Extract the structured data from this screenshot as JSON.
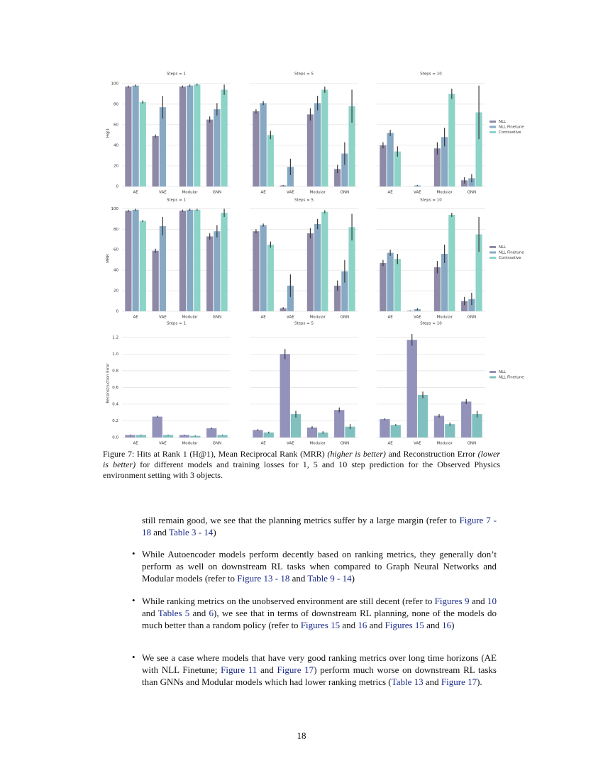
{
  "chart_data": [
    {
      "type": "bar",
      "title": "Steps = 1",
      "ylabel": "H@1",
      "categories": [
        "AE",
        "VAE",
        "Modular",
        "GNN"
      ],
      "ylim": [
        0,
        104
      ],
      "yticks": [
        0,
        20,
        40,
        60,
        80,
        100
      ],
      "grid": true,
      "series": [
        {
          "name": "NLL",
          "color": "#8d89a6",
          "values": [
            97,
            49,
            97,
            65
          ],
          "errors": [
            1,
            1.5,
            1,
            3
          ]
        },
        {
          "name": "NLL Finetune",
          "color": "#88a9c3",
          "values": [
            98,
            77,
            98,
            75
          ],
          "errors": [
            1,
            11,
            1,
            6
          ]
        },
        {
          "name": "Contrastive",
          "color": "#8dd3c7",
          "values": [
            82,
            0,
            99,
            94
          ],
          "errors": [
            1.5,
            0,
            1,
            5
          ]
        }
      ]
    },
    {
      "type": "bar",
      "title": "Steps = 5",
      "categories": [
        "AE",
        "VAE",
        "Modular",
        "GNN"
      ],
      "ylim": [
        0,
        104
      ],
      "yticks": [
        0,
        20,
        40,
        60,
        80,
        100
      ],
      "grid": true,
      "series": [
        {
          "name": "NLL",
          "color": "#8d89a6",
          "values": [
            73,
            1,
            70,
            17
          ],
          "errors": [
            2,
            0.5,
            6,
            4
          ]
        },
        {
          "name": "NLL Finetune",
          "color": "#88a9c3",
          "values": [
            81,
            19,
            81,
            32
          ],
          "errors": [
            2,
            8,
            7,
            11
          ]
        },
        {
          "name": "Contrastive",
          "color": "#8dd3c7",
          "values": [
            50,
            0,
            94,
            78
          ],
          "errors": [
            4,
            0,
            3,
            16
          ]
        }
      ]
    },
    {
      "type": "bar",
      "title": "Steps = 10",
      "categories": [
        "AE",
        "VAE",
        "Modular",
        "GNN"
      ],
      "ylim": [
        0,
        104
      ],
      "yticks": [
        0,
        20,
        40,
        60,
        80,
        100
      ],
      "grid": true,
      "legend": "right",
      "series": [
        {
          "name": "NLL",
          "color": "#8d89a6",
          "values": [
            40,
            0,
            37,
            6
          ],
          "errors": [
            3,
            0,
            6,
            3
          ]
        },
        {
          "name": "NLL Finetune",
          "color": "#88a9c3",
          "values": [
            52,
            1,
            48,
            8
          ],
          "errors": [
            3,
            0.5,
            9,
            4
          ]
        },
        {
          "name": "Contrastive",
          "color": "#8dd3c7",
          "values": [
            34,
            0,
            90,
            72
          ],
          "errors": [
            5,
            0,
            5,
            26
          ]
        }
      ]
    },
    {
      "type": "bar",
      "title": "Steps = 1",
      "ylabel": "MRR",
      "categories": [
        "AE",
        "VAE",
        "Modular",
        "GNN"
      ],
      "ylim": [
        0,
        103
      ],
      "yticks": [
        0,
        20,
        40,
        60,
        80,
        100
      ],
      "grid": true,
      "series": [
        {
          "name": "NLL",
          "color": "#8d89a6",
          "values": [
            98,
            59,
            98,
            73
          ],
          "errors": [
            1,
            2,
            1,
            3
          ]
        },
        {
          "name": "NLL Finetune",
          "color": "#88a9c3",
          "values": [
            99,
            83,
            99,
            78
          ],
          "errors": [
            1,
            9,
            1,
            6
          ]
        },
        {
          "name": "Contrastive",
          "color": "#8dd3c7",
          "values": [
            88,
            0,
            99,
            96
          ],
          "errors": [
            1,
            0,
            1,
            4
          ]
        }
      ]
    },
    {
      "type": "bar",
      "title": "Steps = 5",
      "categories": [
        "AE",
        "VAE",
        "Modular",
        "GNN"
      ],
      "ylim": [
        0,
        103
      ],
      "yticks": [
        0,
        20,
        40,
        60,
        80,
        100
      ],
      "grid": true,
      "series": [
        {
          "name": "NLL",
          "color": "#8d89a6",
          "values": [
            78,
            3,
            76,
            25
          ],
          "errors": [
            2,
            1,
            5,
            5
          ]
        },
        {
          "name": "NLL Finetune",
          "color": "#88a9c3",
          "values": [
            84,
            25,
            85,
            39
          ],
          "errors": [
            1.5,
            11,
            5,
            11
          ]
        },
        {
          "name": "Contrastive",
          "color": "#8dd3c7",
          "values": [
            65,
            0,
            97,
            82
          ],
          "errors": [
            3,
            0,
            1.5,
            13
          ]
        }
      ]
    },
    {
      "type": "bar",
      "title": "Steps = 10",
      "categories": [
        "AE",
        "VAE",
        "Modular",
        "GNN"
      ],
      "ylim": [
        0,
        103
      ],
      "yticks": [
        0,
        20,
        40,
        60,
        80,
        100
      ],
      "grid": true,
      "legend": "right",
      "series": [
        {
          "name": "NLL",
          "color": "#8d89a6",
          "values": [
            47,
            0.5,
            43,
            10
          ],
          "errors": [
            3,
            0.3,
            6,
            4
          ]
        },
        {
          "name": "NLL Finetune",
          "color": "#88a9c3",
          "values": [
            57,
            2,
            56,
            12
          ],
          "errors": [
            3,
            1,
            9,
            6
          ]
        },
        {
          "name": "Contrastive",
          "color": "#8dd3c7",
          "values": [
            51,
            0,
            94,
            75
          ],
          "errors": [
            5,
            0,
            2,
            17
          ]
        }
      ]
    },
    {
      "type": "bar",
      "title": "Steps = 1",
      "ylabel": "Reconstruction Error",
      "categories": [
        "AE",
        "VAE",
        "Modular",
        "GNN"
      ],
      "ylim": [
        0,
        1.3
      ],
      "yticks": [
        {
          "value": 0,
          "label": "0.0"
        },
        0.2,
        0.4,
        0.6,
        0.8,
        {
          "value": 1,
          "label": "1.0"
        },
        1.2
      ],
      "grid": true,
      "series": [
        {
          "name": "NLL",
          "color": "#9292bb",
          "values": [
            0.03,
            0.25,
            0.03,
            0.11
          ],
          "errors": [
            0.005,
            0.01,
            0.005,
            0.01
          ]
        },
        {
          "name": "NLL Finetune",
          "color": "#80c1c0",
          "values": [
            0.03,
            0.03,
            0.02,
            0.03
          ],
          "errors": [
            0.005,
            0.005,
            0.005,
            0.005
          ]
        }
      ]
    },
    {
      "type": "bar",
      "title": "Steps = 5",
      "categories": [
        "AE",
        "VAE",
        "Modular",
        "GNN"
      ],
      "ylim": [
        0,
        1.3
      ],
      "yticks": [
        {
          "value": 0,
          "label": "0.0"
        },
        0.2,
        0.4,
        0.6,
        0.8,
        {
          "value": 1,
          "label": "1.0"
        },
        1.2
      ],
      "grid": true,
      "series": [
        {
          "name": "NLL",
          "color": "#9292bb",
          "values": [
            0.09,
            1.0,
            0.12,
            0.33
          ],
          "errors": [
            0.01,
            0.06,
            0.015,
            0.03
          ]
        },
        {
          "name": "NLL Finetune",
          "color": "#80c1c0",
          "values": [
            0.06,
            0.28,
            0.06,
            0.13
          ],
          "errors": [
            0.01,
            0.04,
            0.015,
            0.03
          ]
        }
      ]
    },
    {
      "type": "bar",
      "title": "Steps = 10",
      "categories": [
        "AE",
        "VAE",
        "Modular",
        "GNN"
      ],
      "ylim": [
        0,
        1.3
      ],
      "yticks": [
        {
          "value": 0,
          "label": "0.0"
        },
        0.2,
        0.4,
        0.6,
        0.8,
        {
          "value": 1,
          "label": "1.0"
        },
        1.2
      ],
      "grid": true,
      "legend": "right",
      "series": [
        {
          "name": "NLL",
          "color": "#9292bb",
          "values": [
            0.22,
            1.17,
            0.26,
            0.43
          ],
          "errors": [
            0.01,
            0.07,
            0.02,
            0.03
          ]
        },
        {
          "name": "NLL Finetune",
          "color": "#80c1c0",
          "values": [
            0.15,
            0.51,
            0.16,
            0.28
          ],
          "errors": [
            0.01,
            0.04,
            0.02,
            0.04
          ]
        }
      ]
    }
  ],
  "caption": [
    "Figure 7: Hits at Rank 1 (H@1), Mean Reciprocal Rank (MRR) ",
    {
      "text": "(higher is better)",
      "italic": true
    },
    " and Reconstruction Error ",
    {
      "text": "(lower is better)",
      "italic": true
    },
    " for different models and training losses for 1, 5 and 10 step prediction for the Observed Physics environment setting with 3 objects."
  ],
  "body": {
    "intro": [
      "still remain good, we see that the planning metrics suffer by a large margin (refer to ",
      {
        "text": "Figure 7 - 18",
        "link": true
      },
      " and ",
      {
        "text": "Table 3 - 14",
        "link": true
      },
      ")"
    ],
    "bullets": [
      [
        "While Autoencoder models perform decently based on ranking metrics, they generally don’t perform as well on downstream RL tasks when compared to Graph Neural Networks and Modular models (refer to ",
        {
          "text": "Figure 13 - 18",
          "link": true
        },
        " and ",
        {
          "text": "Table 9 - 14",
          "link": true
        },
        ")"
      ],
      [
        "While ranking metrics on the unobserved environment are still decent (refer to ",
        {
          "text": "Figures 9",
          "link": true
        },
        " and ",
        {
          "text": "10",
          "link": true
        },
        " and ",
        {
          "text": "Tables 5",
          "link": true
        },
        " and ",
        {
          "text": "6",
          "link": true
        },
        "), we see that in terms of downstream RL planning, none of the models do much better than a random policy (refer to ",
        {
          "text": "Figures 15",
          "link": true
        },
        " and ",
        {
          "text": "16",
          "link": true
        },
        " and ",
        {
          "text": "Figures 15",
          "link": true
        },
        " and ",
        {
          "text": "16",
          "link": true
        },
        ")"
      ],
      [
        "We see a case where models that have very good ranking metrics over long time horizons (AE with NLL Finetune; ",
        {
          "text": "Figure 11",
          "link": true
        },
        " and ",
        {
          "text": "Figure 17",
          "link": true
        },
        ") perform much worse on downstream RL tasks than GNNs and Modular models which had lower ranking metrics (",
        {
          "text": "Table 13",
          "link": true
        },
        " and ",
        {
          "text": "Figure 17",
          "link": true
        },
        ")."
      ]
    ]
  },
  "page_number": "18"
}
